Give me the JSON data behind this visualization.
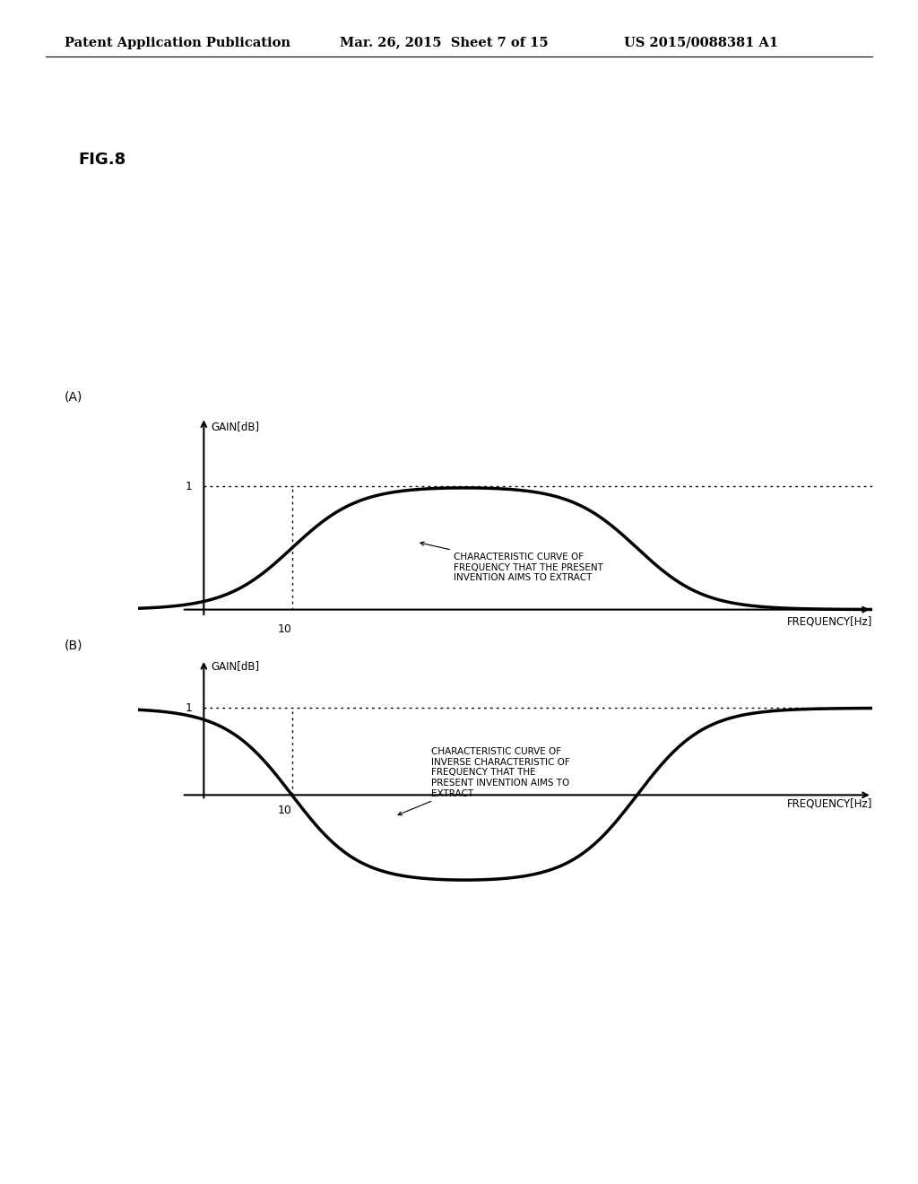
{
  "background_color": "#ffffff",
  "header_left": "Patent Application Publication",
  "header_mid": "Mar. 26, 2015  Sheet 7 of 15",
  "header_right": "US 2015/0088381 A1",
  "fig_label": "FIG.8",
  "panel_A_label": "(A)",
  "panel_B_label": "(B)",
  "gain_label": "GAIN[dB]",
  "freq_label": "FREQUENCY[Hz]",
  "tick_10": "10",
  "tick_1": "1",
  "annotation_A": "CHARACTERISTIC CURVE OF\nFREQUENCY THAT THE PRESENT\nINVENTION AIMS TO EXTRACT",
  "annotation_B": "CHARACTERISTIC CURVE OF\nINVERSE CHARACTERISTIC OF\nFREQUENCY THAT THE\nPRESENT INVENTION AIMS TO\nEXTRACT",
  "line_color": "#000000",
  "text_color": "#000000",
  "dotted_color": "#000000",
  "line_width": 2.5,
  "header_fontsize": 10.5,
  "fig_label_fontsize": 13,
  "panel_label_fontsize": 10,
  "axis_label_fontsize": 8.5,
  "tick_fontsize": 9,
  "annotation_fontsize": 7.5
}
